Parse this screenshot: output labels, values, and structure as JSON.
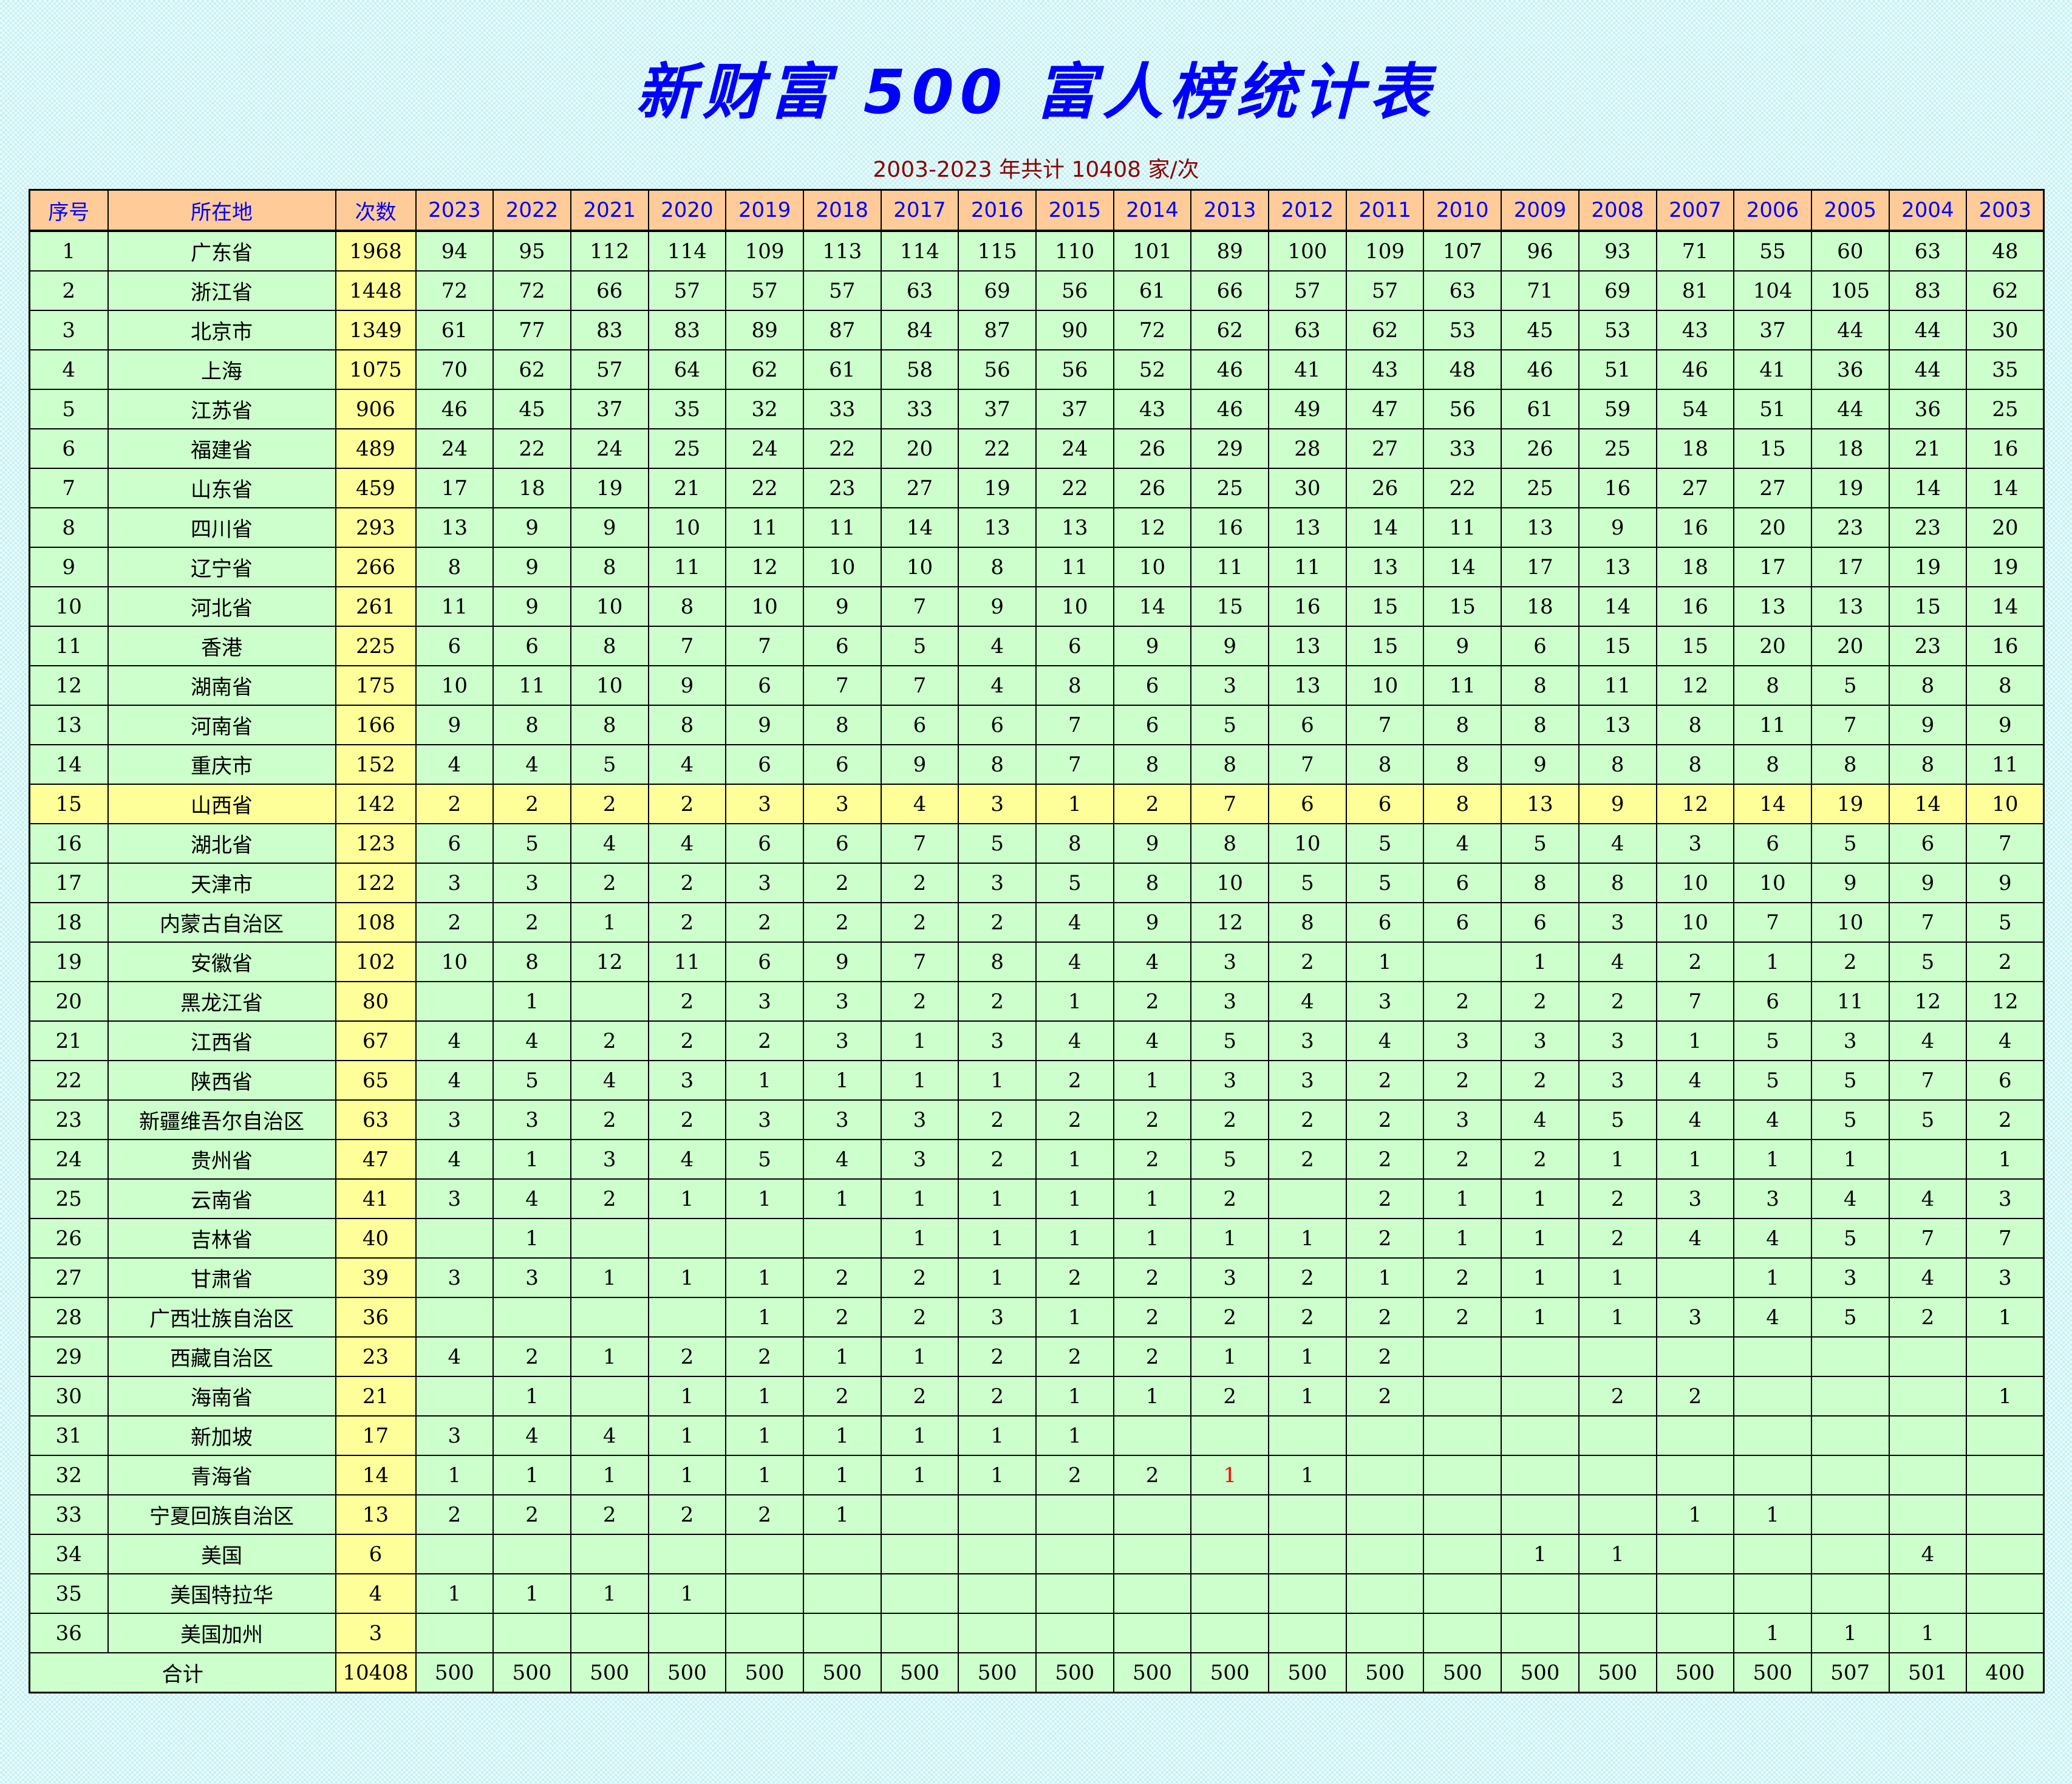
{
  "title": "新财富 500 富人榜统计表",
  "subtitle": "2003-2023 年共计 10408 家/次",
  "colors": {
    "header_bg": "#ffcc99",
    "header_text": "#0000ff",
    "row_bg": "#ccffcc",
    "count_bg": "#ffff99",
    "highlight_row_bg": "#ffff99",
    "title": "#0000ff",
    "subtitle": "#8b0000",
    "red_value": "#ff0000"
  },
  "highlighted_row": "15",
  "red_cell": {
    "row": "32",
    "year": "2013"
  },
  "table": {
    "headers": [
      "序号",
      "所在地",
      "次数",
      "2023",
      "2022",
      "2021",
      "2020",
      "2019",
      "2018",
      "2017",
      "2016",
      "2015",
      "2014",
      "2013",
      "2012",
      "2011",
      "2010",
      "2009",
      "2008",
      "2007",
      "2006",
      "2005",
      "2004",
      "2003"
    ],
    "rows": [
      [
        "1",
        "广东省",
        "1968",
        "94",
        "95",
        "112",
        "114",
        "109",
        "113",
        "114",
        "115",
        "110",
        "101",
        "89",
        "100",
        "109",
        "107",
        "96",
        "93",
        "71",
        "55",
        "60",
        "63",
        "48"
      ],
      [
        "2",
        "浙江省",
        "1448",
        "72",
        "72",
        "66",
        "57",
        "57",
        "57",
        "63",
        "69",
        "56",
        "61",
        "66",
        "57",
        "57",
        "63",
        "71",
        "69",
        "81",
        "104",
        "105",
        "83",
        "62"
      ],
      [
        "3",
        "北京市",
        "1349",
        "61",
        "77",
        "83",
        "83",
        "89",
        "87",
        "84",
        "87",
        "90",
        "72",
        "62",
        "63",
        "62",
        "53",
        "45",
        "53",
        "43",
        "37",
        "44",
        "44",
        "30"
      ],
      [
        "4",
        "上海",
        "1075",
        "70",
        "62",
        "57",
        "64",
        "62",
        "61",
        "58",
        "56",
        "56",
        "52",
        "46",
        "41",
        "43",
        "48",
        "46",
        "51",
        "46",
        "41",
        "36",
        "44",
        "35"
      ],
      [
        "5",
        "江苏省",
        "906",
        "46",
        "45",
        "37",
        "35",
        "32",
        "33",
        "33",
        "37",
        "37",
        "43",
        "46",
        "49",
        "47",
        "56",
        "61",
        "59",
        "54",
        "51",
        "44",
        "36",
        "25"
      ],
      [
        "6",
        "福建省",
        "489",
        "24",
        "22",
        "24",
        "25",
        "24",
        "22",
        "20",
        "22",
        "24",
        "26",
        "29",
        "28",
        "27",
        "33",
        "26",
        "25",
        "18",
        "15",
        "18",
        "21",
        "16"
      ],
      [
        "7",
        "山东省",
        "459",
        "17",
        "18",
        "19",
        "21",
        "22",
        "23",
        "27",
        "19",
        "22",
        "26",
        "25",
        "30",
        "26",
        "22",
        "25",
        "16",
        "27",
        "27",
        "19",
        "14",
        "14"
      ],
      [
        "8",
        "四川省",
        "293",
        "13",
        "9",
        "9",
        "10",
        "11",
        "11",
        "14",
        "13",
        "13",
        "12",
        "16",
        "13",
        "14",
        "11",
        "13",
        "9",
        "16",
        "20",
        "23",
        "23",
        "20"
      ],
      [
        "9",
        "辽宁省",
        "266",
        "8",
        "9",
        "8",
        "11",
        "12",
        "10",
        "10",
        "8",
        "11",
        "10",
        "11",
        "11",
        "13",
        "14",
        "17",
        "13",
        "18",
        "17",
        "17",
        "19",
        "19"
      ],
      [
        "10",
        "河北省",
        "261",
        "11",
        "9",
        "10",
        "8",
        "10",
        "9",
        "7",
        "9",
        "10",
        "14",
        "15",
        "16",
        "15",
        "15",
        "18",
        "14",
        "16",
        "13",
        "13",
        "15",
        "14"
      ],
      [
        "11",
        "香港",
        "225",
        "6",
        "6",
        "8",
        "7",
        "7",
        "6",
        "5",
        "4",
        "6",
        "9",
        "9",
        "13",
        "15",
        "9",
        "6",
        "15",
        "15",
        "20",
        "20",
        "23",
        "16"
      ],
      [
        "12",
        "湖南省",
        "175",
        "10",
        "11",
        "10",
        "9",
        "6",
        "7",
        "7",
        "4",
        "8",
        "6",
        "3",
        "13",
        "10",
        "11",
        "8",
        "11",
        "12",
        "8",
        "5",
        "8",
        "8"
      ],
      [
        "13",
        "河南省",
        "166",
        "9",
        "8",
        "8",
        "8",
        "9",
        "8",
        "6",
        "6",
        "7",
        "6",
        "5",
        "6",
        "7",
        "8",
        "8",
        "13",
        "8",
        "11",
        "7",
        "9",
        "9"
      ],
      [
        "14",
        "重庆市",
        "152",
        "4",
        "4",
        "5",
        "4",
        "6",
        "6",
        "9",
        "8",
        "7",
        "8",
        "8",
        "7",
        "8",
        "8",
        "9",
        "8",
        "8",
        "8",
        "8",
        "8",
        "11"
      ],
      [
        "15",
        "山西省",
        "142",
        "2",
        "2",
        "2",
        "2",
        "3",
        "3",
        "4",
        "3",
        "1",
        "2",
        "7",
        "6",
        "6",
        "8",
        "13",
        "9",
        "12",
        "14",
        "19",
        "14",
        "10"
      ],
      [
        "16",
        "湖北省",
        "123",
        "6",
        "5",
        "4",
        "4",
        "6",
        "6",
        "7",
        "5",
        "8",
        "9",
        "8",
        "10",
        "5",
        "4",
        "5",
        "4",
        "3",
        "6",
        "5",
        "6",
        "7"
      ],
      [
        "17",
        "天津市",
        "122",
        "3",
        "3",
        "2",
        "2",
        "3",
        "2",
        "2",
        "3",
        "5",
        "8",
        "10",
        "5",
        "5",
        "6",
        "8",
        "8",
        "10",
        "10",
        "9",
        "9",
        "9"
      ],
      [
        "18",
        "内蒙古自治区",
        "108",
        "2",
        "2",
        "1",
        "2",
        "2",
        "2",
        "2",
        "2",
        "4",
        "9",
        "12",
        "8",
        "6",
        "6",
        "6",
        "3",
        "10",
        "7",
        "10",
        "7",
        "5"
      ],
      [
        "19",
        "安徽省",
        "102",
        "10",
        "8",
        "12",
        "11",
        "6",
        "9",
        "7",
        "8",
        "4",
        "4",
        "3",
        "2",
        "1",
        "",
        "1",
        "4",
        "2",
        "1",
        "2",
        "5",
        "2"
      ],
      [
        "20",
        "黑龙江省",
        "80",
        "",
        "1",
        "",
        "2",
        "3",
        "3",
        "2",
        "2",
        "1",
        "2",
        "3",
        "4",
        "3",
        "2",
        "2",
        "2",
        "7",
        "6",
        "11",
        "12",
        "12"
      ],
      [
        "21",
        "江西省",
        "67",
        "4",
        "4",
        "2",
        "2",
        "2",
        "3",
        "1",
        "3",
        "4",
        "4",
        "5",
        "3",
        "4",
        "3",
        "3",
        "3",
        "1",
        "5",
        "3",
        "4",
        "4"
      ],
      [
        "22",
        "陕西省",
        "65",
        "4",
        "5",
        "4",
        "3",
        "1",
        "1",
        "1",
        "1",
        "2",
        "1",
        "3",
        "3",
        "2",
        "2",
        "2",
        "3",
        "4",
        "5",
        "5",
        "7",
        "6"
      ],
      [
        "23",
        "新疆维吾尔自治区",
        "63",
        "3",
        "3",
        "2",
        "2",
        "3",
        "3",
        "3",
        "2",
        "2",
        "2",
        "2",
        "2",
        "2",
        "3",
        "4",
        "5",
        "4",
        "4",
        "5",
        "5",
        "2"
      ],
      [
        "24",
        "贵州省",
        "47",
        "4",
        "1",
        "3",
        "4",
        "5",
        "4",
        "3",
        "2",
        "1",
        "2",
        "5",
        "2",
        "2",
        "2",
        "2",
        "1",
        "1",
        "1",
        "1",
        "",
        "1"
      ],
      [
        "25",
        "云南省",
        "41",
        "3",
        "4",
        "2",
        "1",
        "1",
        "1",
        "1",
        "1",
        "1",
        "1",
        "2",
        "",
        "2",
        "1",
        "1",
        "2",
        "3",
        "3",
        "4",
        "4",
        "3"
      ],
      [
        "26",
        "吉林省",
        "40",
        "",
        "1",
        "",
        "",
        "",
        "",
        "1",
        "1",
        "1",
        "1",
        "1",
        "1",
        "2",
        "1",
        "1",
        "2",
        "4",
        "4",
        "5",
        "7",
        "7"
      ],
      [
        "27",
        "甘肃省",
        "39",
        "3",
        "3",
        "1",
        "1",
        "1",
        "2",
        "2",
        "1",
        "2",
        "2",
        "3",
        "2",
        "1",
        "2",
        "1",
        "1",
        "",
        "1",
        "3",
        "4",
        "3"
      ],
      [
        "28",
        "广西壮族自治区",
        "36",
        "",
        "",
        "",
        "",
        "1",
        "2",
        "2",
        "3",
        "1",
        "2",
        "2",
        "2",
        "2",
        "2",
        "1",
        "1",
        "3",
        "4",
        "5",
        "2",
        "1"
      ],
      [
        "29",
        "西藏自治区",
        "23",
        "4",
        "2",
        "1",
        "2",
        "2",
        "1",
        "1",
        "2",
        "2",
        "2",
        "1",
        "1",
        "2",
        "",
        "",
        "",
        "",
        "",
        "",
        "",
        ""
      ],
      [
        "30",
        "海南省",
        "21",
        "",
        "1",
        "",
        "1",
        "1",
        "2",
        "2",
        "2",
        "1",
        "1",
        "2",
        "1",
        "2",
        "",
        "",
        "2",
        "2",
        "",
        "",
        "",
        "1"
      ],
      [
        "31",
        "新加坡",
        "17",
        "3",
        "4",
        "4",
        "1",
        "1",
        "1",
        "1",
        "1",
        "1",
        "",
        "",
        "",
        "",
        "",
        "",
        "",
        "",
        "",
        "",
        "",
        ""
      ],
      [
        "32",
        "青海省",
        "14",
        "1",
        "1",
        "1",
        "1",
        "1",
        "1",
        "1",
        "1",
        "2",
        "2",
        "1",
        "1",
        "",
        "",
        "",
        "",
        "",
        "",
        "",
        "",
        ""
      ],
      [
        "33",
        "宁夏回族自治区",
        "13",
        "2",
        "2",
        "2",
        "2",
        "2",
        "1",
        "",
        "",
        "",
        "",
        "",
        "",
        "",
        "",
        "",
        "",
        "1",
        "1",
        "",
        "",
        ""
      ],
      [
        "34",
        "美国",
        "6",
        "",
        "",
        "",
        "",
        "",
        "",
        "",
        "",
        "",
        "",
        "",
        "",
        "",
        "",
        "1",
        "1",
        "",
        "",
        "",
        "4",
        ""
      ],
      [
        "35",
        "美国特拉华",
        "4",
        "1",
        "1",
        "1",
        "1",
        "",
        "",
        "",
        "",
        "",
        "",
        "",
        "",
        "",
        "",
        "",
        "",
        "",
        "",
        "",
        "",
        ""
      ],
      [
        "36",
        "美国加州",
        "3",
        "",
        "",
        "",
        "",
        "",
        "",
        "",
        "",
        "",
        "",
        "",
        "",
        "",
        "",
        "",
        "",
        "",
        "1",
        "1",
        "1",
        ""
      ]
    ],
    "total": {
      "label": "合计",
      "count": "10408",
      "values": [
        "500",
        "500",
        "500",
        "500",
        "500",
        "500",
        "500",
        "500",
        "500",
        "500",
        "500",
        "500",
        "500",
        "500",
        "500",
        "500",
        "500",
        "500",
        "507",
        "501",
        "400"
      ]
    }
  }
}
